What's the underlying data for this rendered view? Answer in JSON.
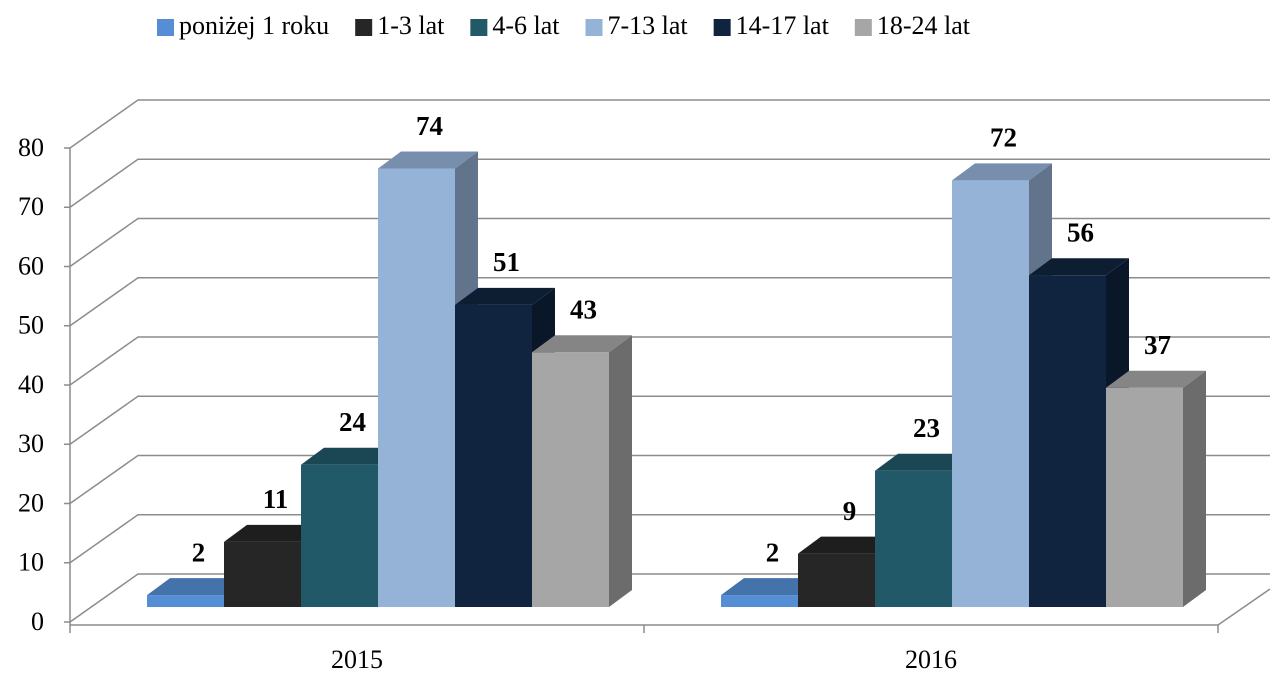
{
  "chart_data": {
    "type": "bar3d",
    "categories": [
      "2015",
      "2016"
    ],
    "series": [
      {
        "name": "poniżej 1 roku",
        "color": "#558ed5",
        "values": [
          2,
          2
        ]
      },
      {
        "name": "1-3 lat",
        "color": "#262626",
        "values": [
          11,
          9
        ]
      },
      {
        "name": "4-6 lat",
        "color": "#215968",
        "values": [
          24,
          23
        ]
      },
      {
        "name": "7-13 lat",
        "color": "#95b3d7",
        "values": [
          74,
          72
        ]
      },
      {
        "name": "14-17 lat",
        "color": "#10243f",
        "values": [
          51,
          56
        ]
      },
      {
        "name": "18-24 lat",
        "color": "#a6a6a6",
        "values": [
          43,
          37
        ]
      }
    ],
    "ylim": [
      0,
      80
    ],
    "yticks": [
      0,
      10,
      20,
      30,
      40,
      50,
      60,
      70,
      80
    ],
    "grid": true,
    "legend": "top"
  }
}
